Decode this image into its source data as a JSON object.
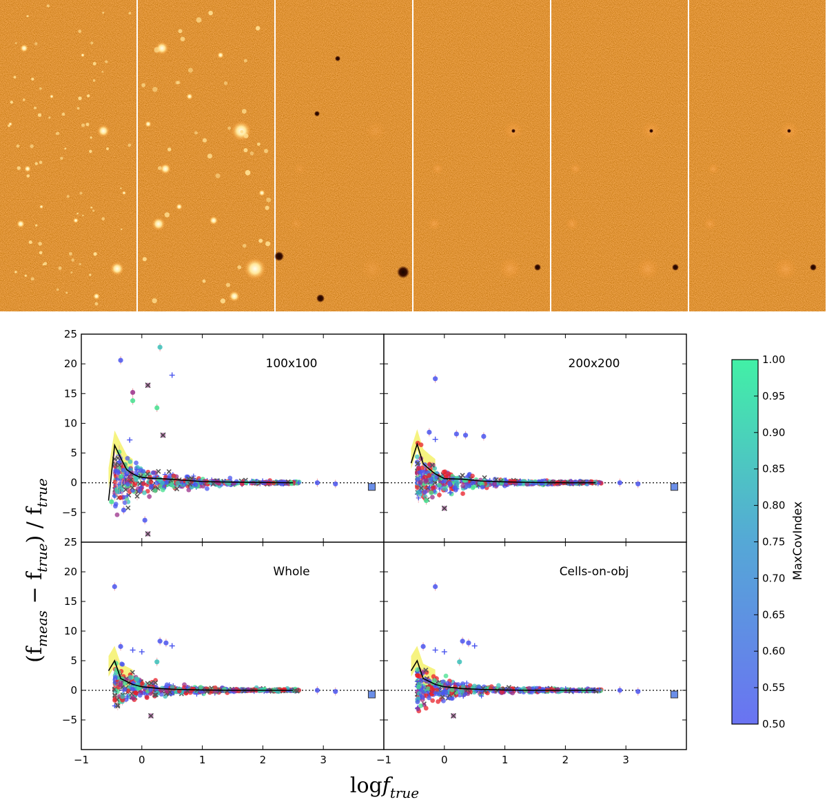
{
  "image_strip": {
    "panels": 6,
    "colors": {
      "background": "#b54a10",
      "bright": "#fff0b0",
      "dark": "#2a0800"
    }
  },
  "chart_data": [
    {
      "type": "scatter",
      "title": "100x100",
      "xlabel": "log f_true",
      "ylabel": "(f_meas − f_true) / f_true",
      "xlim": [
        -1,
        4
      ],
      "ylim": [
        -10,
        25
      ],
      "yticks": [
        -5,
        0,
        5,
        10,
        15,
        20,
        25
      ],
      "xticks": [
        -1,
        0,
        1,
        2,
        3
      ],
      "reference_line": 0,
      "running_mean": {
        "x": [
          -0.55,
          -0.45,
          -0.35,
          -0.25,
          -0.15,
          -0.05,
          0.1,
          0.3,
          0.6,
          1.0,
          1.5,
          2.0,
          2.5
        ],
        "y": [
          -3.0,
          6.3,
          4.2,
          2.2,
          1.5,
          1.0,
          0.8,
          0.7,
          0.5,
          0.2,
          0.1,
          0.05,
          0.0
        ]
      },
      "outliers": [
        {
          "x": -0.35,
          "y": 20.6,
          "m": "o",
          "c": "blue"
        },
        {
          "x": 0.3,
          "y": 22.8,
          "m": "o",
          "c": "teal"
        },
        {
          "x": 0.5,
          "y": 18.1,
          "m": "+",
          "c": "blue"
        },
        {
          "x": -0.15,
          "y": 15.2,
          "m": "o",
          "c": "purple"
        },
        {
          "x": 0.1,
          "y": 16.4,
          "m": "x",
          "c": "purple"
        },
        {
          "x": -0.15,
          "y": 13.8,
          "m": "o",
          "c": "green"
        },
        {
          "x": 0.25,
          "y": 12.6,
          "m": "o",
          "c": "green"
        },
        {
          "x": -0.2,
          "y": 7.2,
          "m": "+",
          "c": "blue"
        },
        {
          "x": 0.35,
          "y": 8.0,
          "m": "x",
          "c": "purple"
        },
        {
          "x": -0.3,
          "y": -4.6,
          "m": "o",
          "c": "blue"
        },
        {
          "x": 0.05,
          "y": -6.3,
          "m": "o",
          "c": "blue"
        },
        {
          "x": 0.1,
          "y": -8.6,
          "m": "x",
          "c": "purple"
        },
        {
          "x": -0.5,
          "y": -3.2,
          "m": "o",
          "c": "green"
        },
        {
          "x": 3.2,
          "y": -0.2,
          "m": "o",
          "c": "blue"
        },
        {
          "x": 2.9,
          "y": 0.0,
          "m": "o",
          "c": "blue"
        },
        {
          "x": 3.8,
          "y": -0.7,
          "m": "s",
          "c": "blue"
        }
      ],
      "spread": 1.0
    },
    {
      "type": "scatter",
      "title": "200x200",
      "xlim": [
        -1,
        4
      ],
      "ylim": [
        -10,
        25
      ],
      "reference_line": 0,
      "running_mean": {
        "x": [
          -0.55,
          -0.45,
          -0.35,
          -0.25,
          -0.15,
          0.0,
          0.3,
          0.6,
          1.0,
          1.5,
          2.0,
          2.5
        ],
        "y": [
          3.3,
          6.5,
          3.2,
          2.3,
          1.5,
          0.7,
          0.6,
          0.3,
          0.15,
          0.05,
          0.0,
          0.0
        ]
      },
      "outliers": [
        {
          "x": -0.15,
          "y": 17.5,
          "m": "o",
          "c": "blue"
        },
        {
          "x": -0.25,
          "y": 8.5,
          "m": "o",
          "c": "blue"
        },
        {
          "x": 0.2,
          "y": 8.2,
          "m": "o",
          "c": "blue"
        },
        {
          "x": 0.35,
          "y": 8.0,
          "m": "o",
          "c": "blue"
        },
        {
          "x": 0.65,
          "y": 7.8,
          "m": "o",
          "c": "blue"
        },
        {
          "x": -0.15,
          "y": 7.3,
          "m": "+",
          "c": "blue"
        },
        {
          "x": 0.0,
          "y": -4.3,
          "m": "x",
          "c": "purple"
        },
        {
          "x": -0.3,
          "y": -3.0,
          "m": "o",
          "c": "green"
        },
        {
          "x": 3.2,
          "y": -0.2,
          "m": "o",
          "c": "blue"
        },
        {
          "x": 2.9,
          "y": 0.0,
          "m": "o",
          "c": "blue"
        },
        {
          "x": 3.8,
          "y": -0.7,
          "m": "s",
          "c": "blue"
        }
      ],
      "spread": 0.7
    },
    {
      "type": "scatter",
      "title": "Whole",
      "xlim": [
        -1,
        4
      ],
      "ylim": [
        -10,
        25
      ],
      "reference_line": 0,
      "running_mean": {
        "x": [
          -0.55,
          -0.45,
          -0.35,
          -0.25,
          -0.15,
          0.0,
          0.3,
          0.6,
          1.0,
          1.5,
          2.0,
          2.5
        ],
        "y": [
          3.3,
          5.0,
          2.0,
          1.5,
          1.0,
          0.6,
          0.3,
          0.15,
          0.05,
          0.0,
          0.0,
          0.0
        ]
      },
      "outliers": [
        {
          "x": -0.45,
          "y": 17.5,
          "m": "o",
          "c": "blue"
        },
        {
          "x": 0.3,
          "y": 8.3,
          "m": "o",
          "c": "blue"
        },
        {
          "x": 0.4,
          "y": 8.0,
          "m": "o",
          "c": "blue"
        },
        {
          "x": 0.5,
          "y": 7.5,
          "m": "+",
          "c": "blue"
        },
        {
          "x": -0.35,
          "y": 7.4,
          "m": "o",
          "c": "blue"
        },
        {
          "x": -0.15,
          "y": 6.8,
          "m": "+",
          "c": "blue"
        },
        {
          "x": 0.0,
          "y": 6.5,
          "m": "+",
          "c": "blue"
        },
        {
          "x": 0.25,
          "y": 4.8,
          "m": "o",
          "c": "teal"
        },
        {
          "x": 0.15,
          "y": -4.3,
          "m": "x",
          "c": "purple"
        },
        {
          "x": 3.2,
          "y": -0.2,
          "m": "o",
          "c": "blue"
        },
        {
          "x": 2.9,
          "y": 0.0,
          "m": "o",
          "c": "blue"
        },
        {
          "x": 3.8,
          "y": -0.7,
          "m": "s",
          "c": "blue"
        }
      ],
      "spread": 0.6
    },
    {
      "type": "scatter",
      "title": "Cells-on-obj",
      "xlim": [
        -1,
        4
      ],
      "ylim": [
        -10,
        25
      ],
      "reference_line": 0,
      "running_mean": {
        "x": [
          -0.55,
          -0.45,
          -0.35,
          -0.25,
          -0.15,
          0.0,
          0.3,
          0.6,
          1.0,
          1.5,
          2.0,
          2.5
        ],
        "y": [
          3.3,
          5.0,
          2.0,
          1.5,
          1.0,
          0.6,
          0.3,
          0.15,
          0.05,
          0.0,
          0.0,
          0.0
        ]
      },
      "outliers": [
        {
          "x": -0.15,
          "y": 17.5,
          "m": "o",
          "c": "blue"
        },
        {
          "x": 0.3,
          "y": 8.3,
          "m": "o",
          "c": "blue"
        },
        {
          "x": 0.4,
          "y": 8.0,
          "m": "o",
          "c": "blue"
        },
        {
          "x": 0.5,
          "y": 7.5,
          "m": "+",
          "c": "blue"
        },
        {
          "x": -0.35,
          "y": 7.4,
          "m": "o",
          "c": "blue"
        },
        {
          "x": -0.15,
          "y": 6.8,
          "m": "+",
          "c": "blue"
        },
        {
          "x": 0.0,
          "y": 6.5,
          "m": "+",
          "c": "blue"
        },
        {
          "x": 0.25,
          "y": 4.8,
          "m": "o",
          "c": "teal"
        },
        {
          "x": 0.15,
          "y": -4.3,
          "m": "x",
          "c": "purple"
        },
        {
          "x": 3.2,
          "y": -0.2,
          "m": "o",
          "c": "blue"
        },
        {
          "x": 2.9,
          "y": 0.0,
          "m": "o",
          "c": "blue"
        },
        {
          "x": 3.8,
          "y": -0.7,
          "m": "s",
          "c": "blue"
        }
      ],
      "spread": 0.6
    }
  ],
  "colorbar": {
    "label": "MaxCovIndex",
    "range": [
      0.5,
      1.0
    ],
    "ticks": [
      "1.00",
      "0.95",
      "0.90",
      "0.85",
      "0.80",
      "0.75",
      "0.70",
      "0.65",
      "0.60",
      "0.55",
      "0.50"
    ],
    "color_low": "#6a73f2",
    "color_high": "#42f0a6"
  },
  "palette": {
    "blue": "#4a55ee",
    "purple": "#9a2f8a",
    "red": "#e8202a",
    "teal": "#3ac0b8",
    "green": "#44e08e",
    "yellow": "#f4f060",
    "errbar": "#f2a0a8"
  },
  "labels": {
    "ylabel_display": "(f",
    "xlabel_display": "log"
  }
}
